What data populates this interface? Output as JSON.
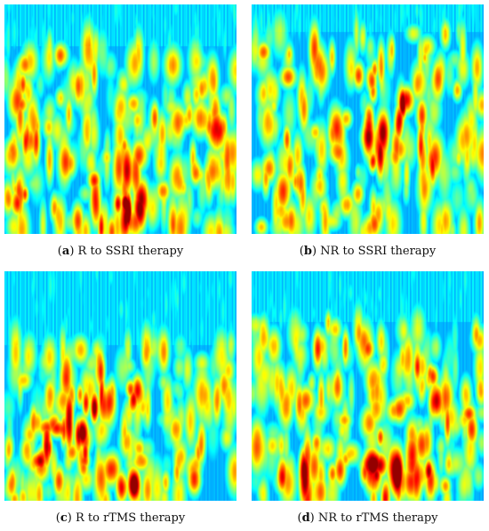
{
  "figure": {
    "panels": [
      {
        "id": "a",
        "letter": "a",
        "caption": "R to SSRI therapy",
        "colormap": "jet"
      },
      {
        "id": "b",
        "letter": "b",
        "caption": "NR to SSRI therapy",
        "colormap": "jet"
      },
      {
        "id": "c",
        "letter": "c",
        "caption": "R to rTMS therapy",
        "colormap": "jet"
      },
      {
        "id": "d",
        "letter": "d",
        "caption": "NR to rTMS therapy",
        "colormap": "jet"
      }
    ]
  }
}
